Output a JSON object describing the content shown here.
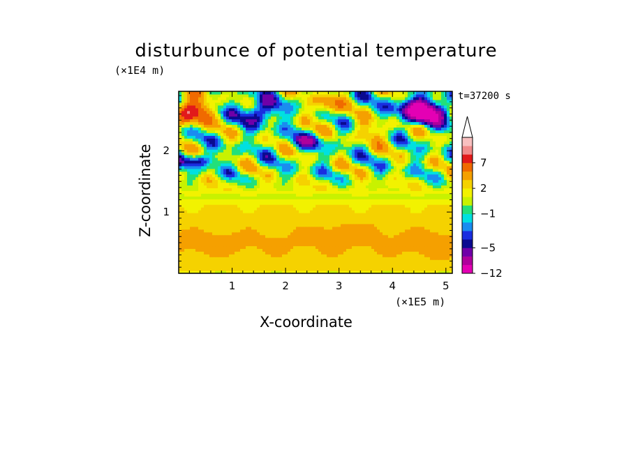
{
  "chart_data": {
    "type": "heatmap",
    "title": "disturbunce of potential temperature",
    "xlabel": "X-coordinate",
    "ylabel": "Z-coordinate",
    "x_unit": "(×1E5 m)",
    "y_unit": "(×1E4 m)",
    "time_label": "t=37200 s",
    "x_ticks": [
      "1",
      "2",
      "3",
      "4",
      "5"
    ],
    "y_ticks": [
      "1",
      "2"
    ],
    "xlim": [
      0,
      5.12
    ],
    "ylim": [
      0,
      2.97
    ],
    "colorbar": {
      "tick_labels": [
        "7",
        "2",
        "−1",
        "−5",
        "−12"
      ],
      "levels": [
        -12,
        -9,
        -7,
        -5,
        -4,
        -3,
        -2,
        -1,
        0,
        1,
        2,
        3,
        5,
        7,
        9,
        11
      ],
      "colors": [
        "#e400b4",
        "#b0009c",
        "#7000a8",
        "#0a0a90",
        "#1a2ee0",
        "#1a8cf0",
        "#00e0e0",
        "#22e07a",
        "#c8f200",
        "#f2f200",
        "#f5d200",
        "#f5a000",
        "#f06a00",
        "#e21a1a",
        "#f08a8a",
        "#f8c0c0"
      ],
      "extend_top": true
    }
  },
  "colors": {
    "background": "#ffffff",
    "frame": "#000000"
  }
}
